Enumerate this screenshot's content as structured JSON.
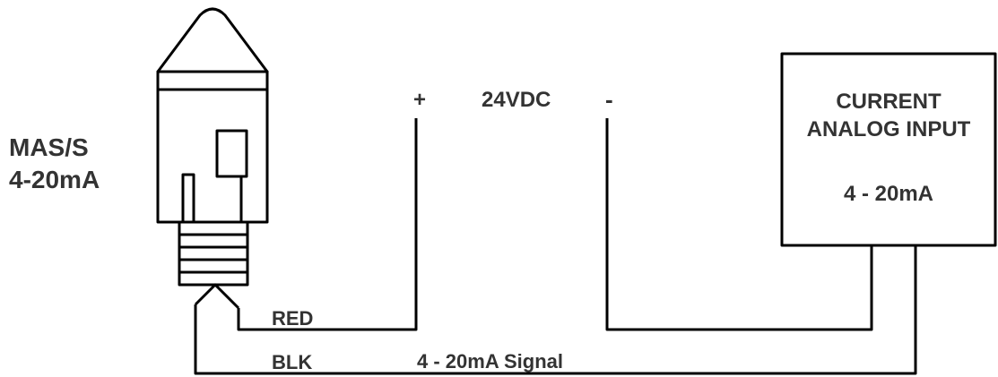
{
  "sensor": {
    "line1": "MAS/S",
    "line2": "4-20mA"
  },
  "supply": {
    "plus": "+",
    "voltage": "24VDC",
    "minus": "-"
  },
  "analog_input": {
    "line1": "CURRENT",
    "line2": "ANALOG INPUT",
    "range": "4 - 20mA"
  },
  "wires": {
    "red": "RED",
    "black": "BLK",
    "signal": "4 - 20mA Signal"
  },
  "colors": {
    "line": "#000000",
    "text": "#333333"
  }
}
